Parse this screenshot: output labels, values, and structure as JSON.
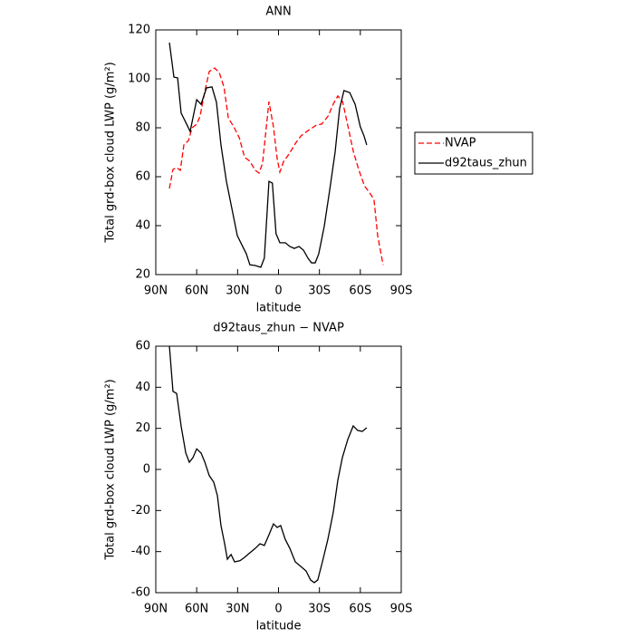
{
  "chart_data": [
    {
      "type": "line",
      "title": "ANN",
      "xlabel": "latitude",
      "ylabel": "Total grd-box cloud LWP (g/m²)",
      "xlim": [
        90,
        -90
      ],
      "xticks": [
        {
          "value": 90,
          "label": "90N"
        },
        {
          "value": 60,
          "label": "60N"
        },
        {
          "value": 30,
          "label": "30N"
        },
        0,
        {
          "value": -30,
          "label": "30S"
        },
        {
          "value": -60,
          "label": "60S"
        },
        {
          "value": -90,
          "label": "90S"
        }
      ],
      "ylim": [
        20,
        120
      ],
      "yticks": [
        20,
        40,
        60,
        80,
        100,
        120
      ],
      "legend": "right",
      "series": [
        {
          "name": "NVAP",
          "color": "#ff0000",
          "dash": true,
          "x": [
            80,
            77.4,
            74.7,
            72,
            69.4,
            66,
            63.4,
            60,
            57.5,
            54,
            50.8,
            46.8,
            43.5,
            40,
            36.8,
            32.8,
            28.8,
            24.9,
            21,
            17,
            14.3,
            11.7,
            7,
            3.7,
            1,
            -1,
            -3.8,
            -7.8,
            -12.5,
            -16.5,
            -21.8,
            -27.8,
            -31.7,
            -36.4,
            -40.4,
            -43.5,
            -47,
            -51,
            -55,
            -59,
            -63,
            -67,
            -70,
            -72.7,
            -76.7
          ],
          "values": [
            55.2,
            63,
            63.7,
            62.6,
            73,
            74.8,
            80,
            81.5,
            84.8,
            95,
            103,
            104.4,
            102.6,
            96.7,
            84,
            80.4,
            76,
            68,
            66.3,
            62.6,
            61.5,
            65.5,
            90.7,
            80.4,
            67.4,
            61.9,
            66.3,
            69.3,
            73.7,
            76.7,
            78.9,
            81.1,
            81.5,
            84.8,
            90,
            93,
            90.7,
            80.4,
            70,
            62.6,
            56.3,
            53.3,
            50.7,
            36,
            24
          ]
        },
        {
          "name": "d92taus_zhun",
          "color": "#000000",
          "dash": false,
          "x": [
            80,
            76.7,
            74,
            71.4,
            68,
            64.8,
            60,
            56.8,
            52.8,
            48.8,
            45.5,
            42.2,
            38.2,
            34.2,
            30.2,
            26.3,
            23.6,
            21,
            17,
            13,
            10.4,
            7,
            4.5,
            1.8,
            -1,
            -5,
            -8.3,
            -11.6,
            -15,
            -18.3,
            -21.6,
            -24.2,
            -26.9,
            -29.5,
            -33.5,
            -37.5,
            -41.5,
            -44.8,
            -48,
            -52.2,
            -56.2,
            -60,
            -62.7,
            -64.7
          ],
          "values": [
            114.8,
            100.7,
            100.4,
            86,
            82.2,
            78.5,
            91.5,
            89.6,
            96.3,
            96.7,
            90.4,
            73,
            58.1,
            47,
            35.9,
            31.5,
            28.5,
            24,
            23.7,
            23,
            26.7,
            58.1,
            57.4,
            36.7,
            33,
            33,
            31.5,
            30.7,
            31.5,
            30,
            26.7,
            24.8,
            24.8,
            28.5,
            39.6,
            54.4,
            70,
            87.8,
            95.2,
            94.4,
            89.6,
            80.4,
            76.7,
            73
          ]
        }
      ]
    },
    {
      "type": "line",
      "title": "d92taus_zhun − NVAP",
      "xlabel": "latitude",
      "ylabel": "Total grd-box cloud LWP (g/m²)",
      "xlim": [
        90,
        -90
      ],
      "xticks": [
        {
          "value": 90,
          "label": "90N"
        },
        {
          "value": 60,
          "label": "60N"
        },
        {
          "value": 30,
          "label": "30N"
        },
        0,
        {
          "value": -30,
          "label": "30S"
        },
        {
          "value": -60,
          "label": "60S"
        },
        {
          "value": -90,
          "label": "90S"
        }
      ],
      "ylim": [
        -60,
        60
      ],
      "yticks": [
        -60,
        -40,
        -20,
        0,
        20,
        40,
        60
      ],
      "series": [
        {
          "color": "#000000",
          "dash": false,
          "x": [
            80,
            77.4,
            74.7,
            71.4,
            68,
            65.4,
            62.8,
            60,
            56.8,
            54,
            50.8,
            47.5,
            44.8,
            42.2,
            39.5,
            37.5,
            34.8,
            32.2,
            28.2,
            24.9,
            21,
            17,
            13.6,
            10.4,
            7,
            3.7,
            1,
            -1.6,
            -4.9,
            -8.3,
            -12.3,
            -16.3,
            -20.2,
            -23.5,
            -26.2,
            -28.8,
            -32.2,
            -36.2,
            -40.2,
            -43.5,
            -46.8,
            -50.8,
            -54.8,
            -58,
            -61.4,
            -64.7
          ],
          "values": [
            60,
            38,
            37,
            21,
            8,
            3.5,
            5.7,
            10,
            8,
            3.5,
            -3,
            -6.2,
            -12.8,
            -27.3,
            -36.2,
            -43.7,
            -41.4,
            -45,
            -44.4,
            -42.8,
            -40.6,
            -38.4,
            -36.2,
            -37,
            -31.8,
            -26.5,
            -28.2,
            -27.3,
            -34,
            -38.4,
            -45,
            -47.2,
            -49.4,
            -53.8,
            -55.1,
            -53.8,
            -45,
            -34,
            -20.7,
            -5.3,
            5.7,
            14.6,
            21.2,
            19,
            18.5,
            20.3
          ]
        }
      ]
    }
  ]
}
